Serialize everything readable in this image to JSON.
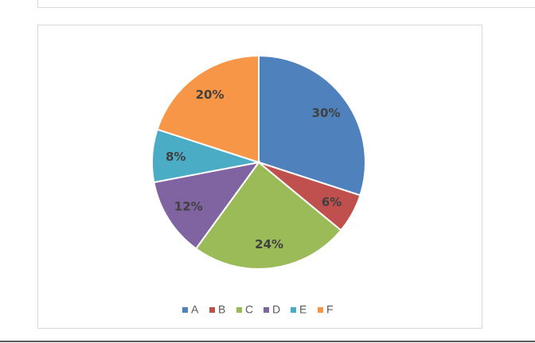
{
  "chart_data": {
    "type": "pie",
    "categories": [
      "A",
      "B",
      "C",
      "D",
      "E",
      "F"
    ],
    "values": [
      30,
      6,
      24,
      12,
      8,
      20
    ],
    "value_labels": [
      "30%",
      "6%",
      "24%",
      "12%",
      "8%",
      "20%"
    ],
    "colors": [
      "#4f81bd",
      "#c0504d",
      "#9bbb59",
      "#8064a2",
      "#4bacc6",
      "#f79646"
    ],
    "legend": "bottom"
  }
}
